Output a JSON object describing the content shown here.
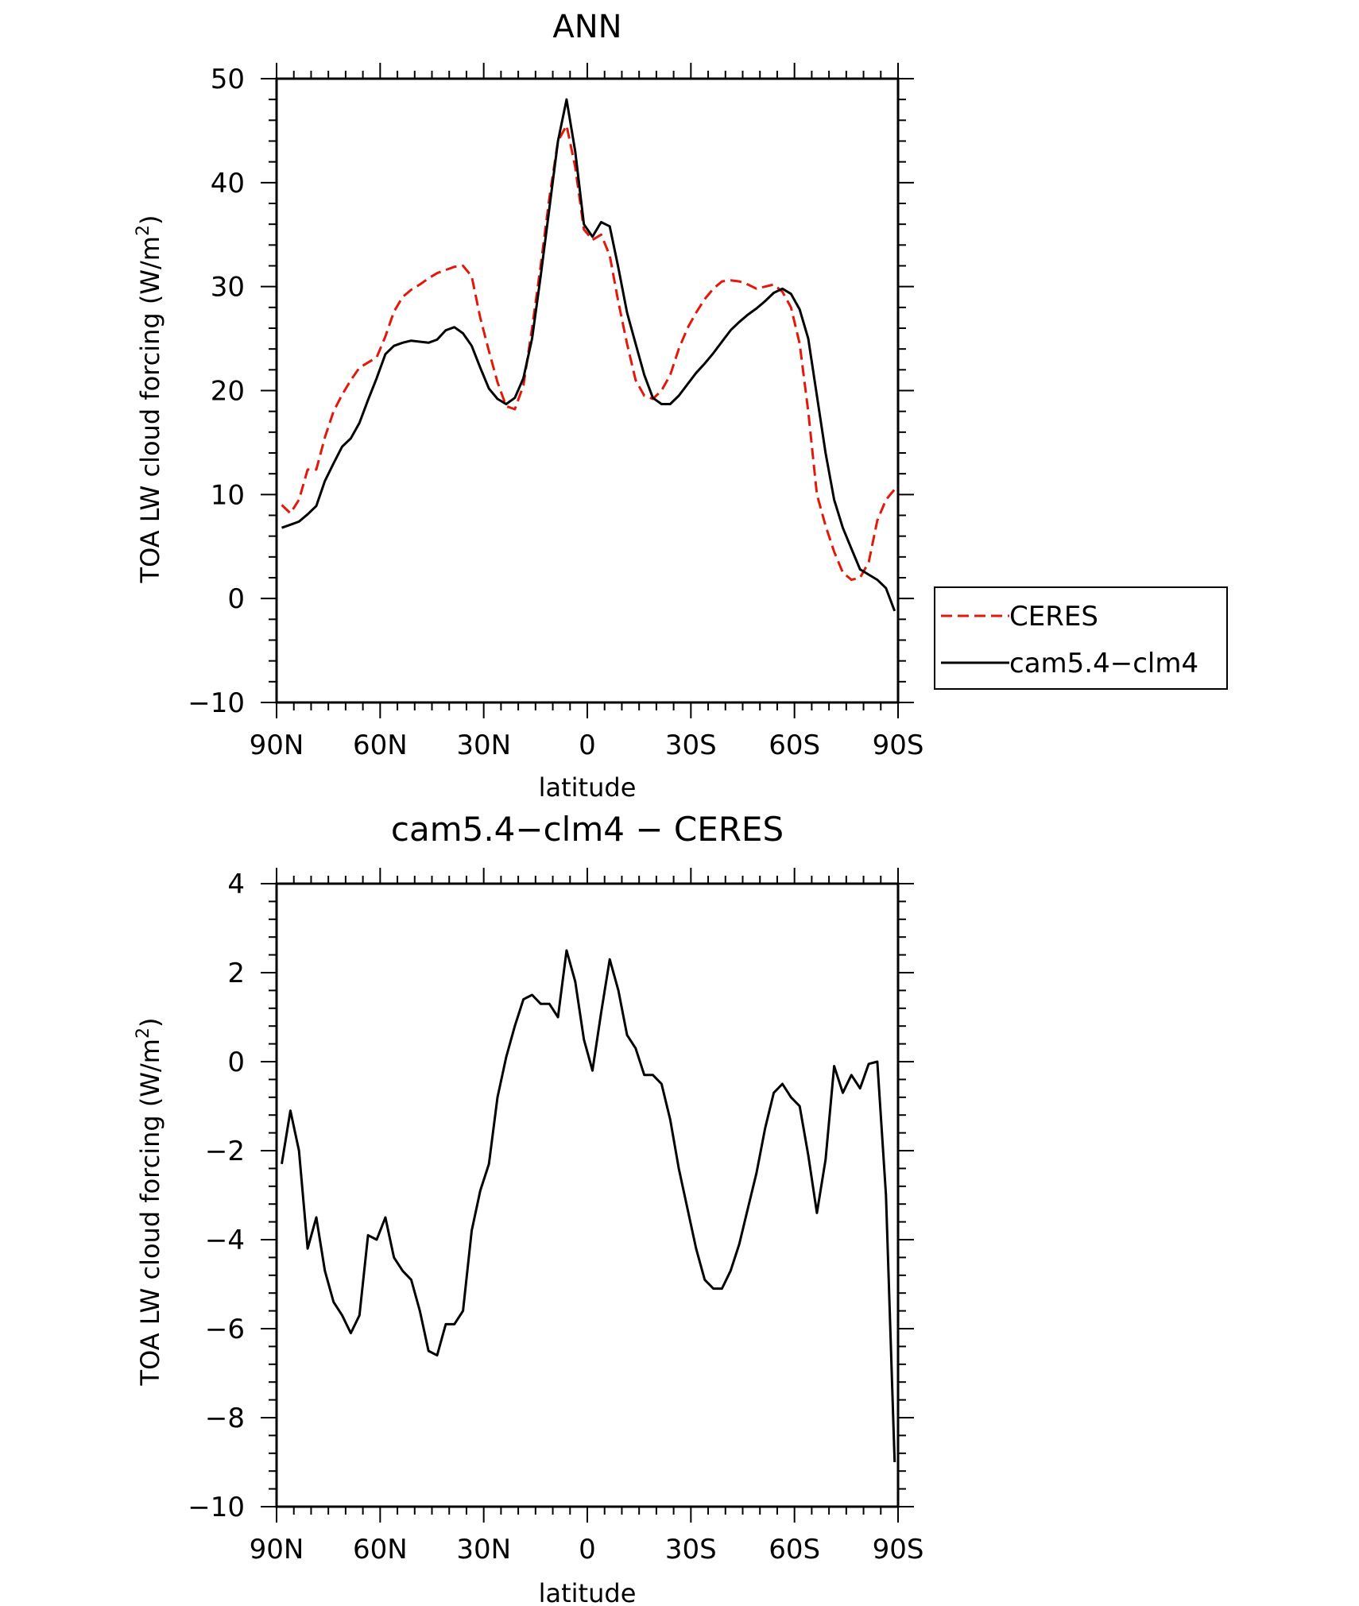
{
  "chart_data": [
    {
      "type": "line",
      "title": "ANN",
      "xlabel": "latitude",
      "ylabel": "TOA LW cloud forcing (W/m",
      "ylabel_sup": "2",
      "ylabel_close": ")",
      "xlim": [
        90,
        -90
      ],
      "ylim": [
        -10,
        50
      ],
      "xticks": [
        {
          "value": 90,
          "label": "90N"
        },
        {
          "value": 60,
          "label": "60N"
        },
        {
          "value": 30,
          "label": "30N"
        },
        {
          "value": 0,
          "label": "0"
        },
        {
          "value": -30,
          "label": "30S"
        },
        {
          "value": -60,
          "label": "60S"
        },
        {
          "value": -90,
          "label": "90S"
        }
      ],
      "yticks": [
        {
          "value": 50,
          "label": "50"
        },
        {
          "value": 40,
          "label": "40"
        },
        {
          "value": 30,
          "label": "30"
        },
        {
          "value": 20,
          "label": "20"
        },
        {
          "value": 10,
          "label": "10"
        },
        {
          "value": 0,
          "label": "0"
        },
        {
          "value": -10,
          "label": "−10"
        }
      ],
      "legend": {
        "position": "right"
      },
      "series": [
        {
          "name": "CERES",
          "color": "#e3170a",
          "dash": "dashed",
          "x": [
            88.5,
            86,
            83.5,
            81,
            78.5,
            76,
            73.5,
            71,
            68.5,
            66,
            63.5,
            61,
            58.5,
            56,
            53.5,
            51,
            48.5,
            46,
            43.5,
            41,
            38.5,
            36,
            33.5,
            31,
            28.5,
            26,
            23.5,
            21,
            18.5,
            16,
            13.5,
            11,
            8.5,
            6,
            3.5,
            1,
            -1.5,
            -4,
            -6.5,
            -9,
            -11.5,
            -14,
            -16.5,
            -19,
            -21.5,
            -24,
            -26.5,
            -29,
            -31.5,
            -34,
            -36.5,
            -39,
            -41.5,
            -44,
            -46.5,
            -49,
            -51.5,
            -54,
            -56.5,
            -59,
            -61.5,
            -64,
            -66.5,
            -69,
            -71.5,
            -74,
            -76.5,
            -79,
            -81.5,
            -84,
            -86.5,
            -89
          ],
          "y": [
            9.0,
            8.2,
            9.5,
            12.4,
            12.4,
            15.5,
            18.0,
            19.6,
            21.0,
            22.2,
            22.7,
            23.2,
            25.2,
            27.6,
            29.0,
            29.7,
            30.2,
            30.8,
            31.3,
            31.6,
            31.9,
            32.0,
            31.0,
            27.0,
            23.8,
            20.8,
            18.5,
            18.2,
            20.5,
            26.0,
            32.0,
            38.5,
            44.0,
            45.5,
            41.5,
            35.5,
            34.5,
            35.0,
            33.0,
            28.5,
            24.5,
            21.0,
            19.5,
            19.2,
            20.0,
            21.5,
            24.0,
            26.0,
            27.5,
            28.8,
            29.8,
            30.5,
            30.6,
            30.5,
            30.2,
            29.8,
            30.0,
            30.2,
            29.5,
            28.0,
            24.5,
            18.0,
            10.0,
            7.0,
            4.5,
            2.5,
            1.8,
            2.0,
            3.5,
            7.5,
            9.5,
            10.5
          ]
        },
        {
          "name": "cam5.4−clm4",
          "color": "#000000",
          "dash": "solid",
          "x": [
            88.5,
            86,
            83.5,
            81,
            78.5,
            76,
            73.5,
            71,
            68.5,
            66,
            63.5,
            61,
            58.5,
            56,
            53.5,
            51,
            48.5,
            46,
            43.5,
            41,
            38.5,
            36,
            33.5,
            31,
            28.5,
            26,
            23.5,
            21,
            18.5,
            16,
            13.5,
            11,
            8.5,
            6,
            3.5,
            1,
            -1.5,
            -4,
            -6.5,
            -9,
            -11.5,
            -14,
            -16.5,
            -19,
            -21.5,
            -24,
            -26.5,
            -29,
            -31.5,
            -34,
            -36.5,
            -39,
            -41.5,
            -44,
            -46.5,
            -49,
            -51.5,
            -54,
            -56.5,
            -59,
            -61.5,
            -64,
            -66.5,
            -69,
            -71.5,
            -74,
            -76.5,
            -79,
            -81.5,
            -84,
            -86.5,
            -89
          ],
          "y": [
            6.8,
            7.1,
            7.4,
            8.1,
            8.9,
            11.3,
            13.0,
            14.6,
            15.4,
            16.9,
            19.1,
            21.2,
            23.5,
            24.3,
            24.6,
            24.8,
            24.7,
            24.6,
            24.9,
            25.8,
            26.1,
            25.5,
            24.3,
            22.2,
            20.2,
            19.2,
            18.7,
            19.3,
            21.2,
            25.0,
            31.0,
            37.5,
            44.0,
            48.0,
            43.0,
            36.0,
            34.8,
            36.2,
            35.8,
            31.8,
            27.5,
            24.5,
            21.5,
            19.3,
            18.7,
            18.7,
            19.5,
            20.6,
            21.7,
            22.6,
            23.6,
            24.7,
            25.8,
            26.6,
            27.3,
            27.9,
            28.6,
            29.4,
            29.8,
            29.3,
            27.8,
            25.0,
            19.5,
            14.0,
            9.5,
            6.8,
            4.8,
            2.8,
            2.3,
            1.8,
            1.0,
            -1.2
          ]
        }
      ]
    },
    {
      "type": "line",
      "title": "cam5.4−clm4 − CERES",
      "xlabel": "latitude",
      "ylabel": "TOA LW cloud forcing (W/m",
      "ylabel_sup": "2",
      "ylabel_close": ")",
      "xlim": [
        90,
        -90
      ],
      "ylim": [
        -10,
        4
      ],
      "xticks": [
        {
          "value": 90,
          "label": "90N"
        },
        {
          "value": 60,
          "label": "60N"
        },
        {
          "value": 30,
          "label": "30N"
        },
        {
          "value": 0,
          "label": "0"
        },
        {
          "value": -30,
          "label": "30S"
        },
        {
          "value": -60,
          "label": "60S"
        },
        {
          "value": -90,
          "label": "90S"
        }
      ],
      "yticks": [
        {
          "value": 4,
          "label": "4"
        },
        {
          "value": 2,
          "label": "2"
        },
        {
          "value": 0,
          "label": "0"
        },
        {
          "value": -2,
          "label": "−2"
        },
        {
          "value": -4,
          "label": "−4"
        },
        {
          "value": -6,
          "label": "−6"
        },
        {
          "value": -8,
          "label": "−8"
        },
        {
          "value": -10,
          "label": "−10"
        }
      ],
      "series": [
        {
          "color": "#000000",
          "dash": "solid",
          "x": [
            88.5,
            86,
            83.5,
            81,
            78.5,
            76,
            73.5,
            71,
            68.5,
            66,
            63.5,
            61,
            58.5,
            56,
            53.5,
            51,
            48.5,
            46,
            43.5,
            41,
            38.5,
            36,
            33.5,
            31,
            28.5,
            26,
            23.5,
            21,
            18.5,
            16,
            13.5,
            11,
            8.5,
            6,
            3.5,
            1,
            -1.5,
            -4,
            -6.5,
            -9,
            -11.5,
            -14,
            -16.5,
            -19,
            -21.5,
            -24,
            -26.5,
            -29,
            -31.5,
            -34,
            -36.5,
            -39,
            -41.5,
            -44,
            -46.5,
            -49,
            -51.5,
            -54,
            -56.5,
            -59,
            -61.5,
            -64,
            -66.5,
            -69,
            -71.5,
            -74,
            -76.5,
            -79,
            -81.5,
            -84,
            -86.5,
            -89
          ],
          "y": [
            -2.3,
            -1.1,
            -2.0,
            -4.2,
            -3.5,
            -4.7,
            -5.4,
            -5.7,
            -6.1,
            -5.7,
            -3.9,
            -4.0,
            -3.5,
            -4.4,
            -4.7,
            -4.9,
            -5.6,
            -6.5,
            -6.6,
            -5.9,
            -5.9,
            -5.6,
            -3.8,
            -2.9,
            -2.3,
            -0.8,
            0.1,
            0.8,
            1.4,
            1.5,
            1.3,
            1.3,
            1.0,
            2.5,
            1.8,
            0.5,
            -0.2,
            1.1,
            2.3,
            1.6,
            0.6,
            0.3,
            -0.3,
            -0.3,
            -0.5,
            -1.3,
            -2.4,
            -3.3,
            -4.2,
            -4.9,
            -5.1,
            -5.1,
            -4.7,
            -4.1,
            -3.3,
            -2.5,
            -1.5,
            -0.7,
            -0.5,
            -0.8,
            -1.0,
            -2.1,
            -3.4,
            -2.2,
            -0.1,
            -0.7,
            -0.3,
            -0.6,
            -0.05,
            0.0,
            -3.0,
            -9.0
          ]
        }
      ]
    }
  ]
}
